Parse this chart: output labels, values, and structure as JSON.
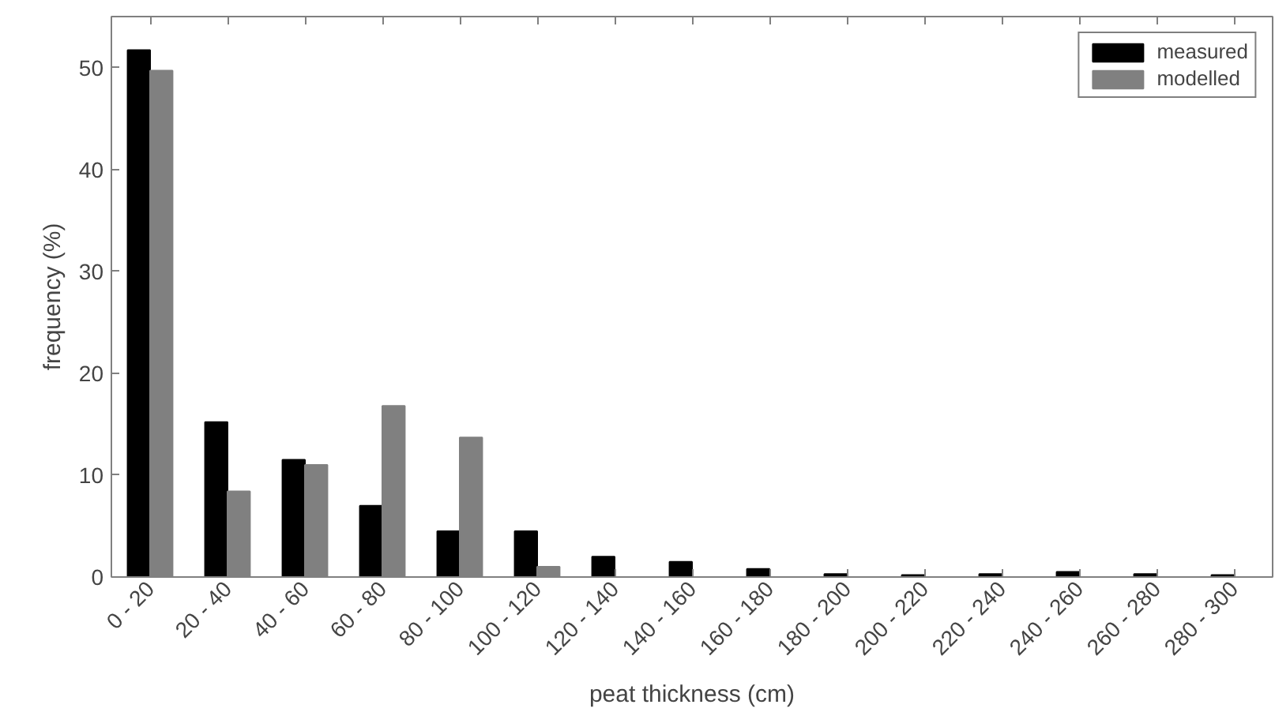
{
  "chart_data": {
    "type": "bar",
    "xlabel": "peat thickness (cm)",
    "ylabel": "frequency (%)",
    "categories": [
      "0 - 20",
      "20 - 40",
      "40 - 60",
      "60 - 80",
      "80 - 100",
      "100 - 120",
      "120 - 140",
      "140 - 160",
      "160 - 180",
      "180 - 200",
      "200 - 220",
      "220 - 240",
      "240 - 260",
      "260 - 280",
      "280 - 300"
    ],
    "series": [
      {
        "name": "measured",
        "color": "#000000",
        "values": [
          51.7,
          15.2,
          11.5,
          7.0,
          4.5,
          4.5,
          2.0,
          1.5,
          0.8,
          0.3,
          0.2,
          0.3,
          0.5,
          0.3,
          0.2
        ]
      },
      {
        "name": "modelled",
        "color": "#808080",
        "values": [
          49.7,
          8.4,
          11.0,
          16.8,
          13.7,
          1.0,
          0,
          0,
          0,
          0,
          0,
          0,
          0,
          0,
          0
        ]
      }
    ],
    "ylim": [
      0,
      55
    ],
    "yticks": [
      0,
      10,
      20,
      30,
      40,
      50
    ],
    "grid": false,
    "legend": "top right"
  }
}
